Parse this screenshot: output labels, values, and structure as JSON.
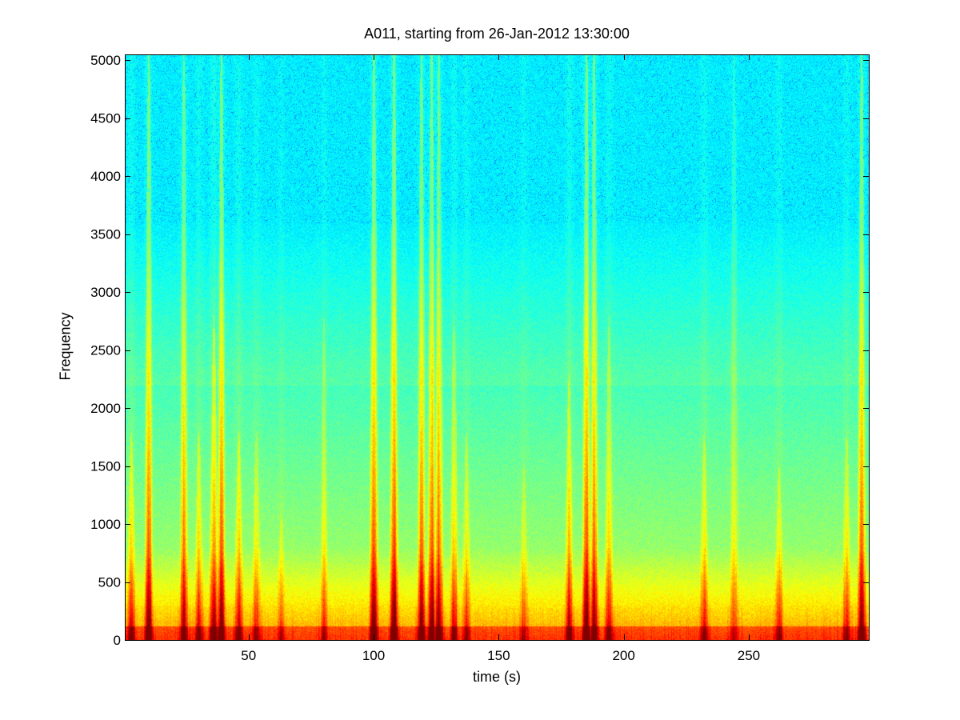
{
  "chart_data": {
    "type": "heatmap",
    "title": "A011, starting from 26-Jan-2012 13:30:00",
    "xlabel": "time (s)",
    "ylabel": "Frequency",
    "xlim": [
      0.5,
      298
    ],
    "ylim": [
      0,
      5050
    ],
    "x_ticks": [
      50,
      100,
      150,
      200,
      250
    ],
    "y_ticks": [
      0,
      500,
      1000,
      1500,
      2000,
      2500,
      3000,
      3500,
      4000,
      4500,
      5000
    ],
    "colormap": "jet",
    "grid": false,
    "energy_bursts": [
      {
        "t": 3,
        "strength": 0.7,
        "reach_hz": 1500
      },
      {
        "t": 10,
        "strength": 0.9,
        "reach_hz": 5000
      },
      {
        "t": 24,
        "strength": 0.8,
        "reach_hz": 5000
      },
      {
        "t": 30,
        "strength": 0.65,
        "reach_hz": 1500
      },
      {
        "t": 36,
        "strength": 0.95,
        "reach_hz": 2500
      },
      {
        "t": 39,
        "strength": 0.9,
        "reach_hz": 5000
      },
      {
        "t": 46,
        "strength": 0.75,
        "reach_hz": 1500
      },
      {
        "t": 53,
        "strength": 0.55,
        "reach_hz": 1500
      },
      {
        "t": 63,
        "strength": 0.4,
        "reach_hz": 800
      },
      {
        "t": 80,
        "strength": 0.45,
        "reach_hz": 2500
      },
      {
        "t": 100,
        "strength": 1.0,
        "reach_hz": 5000
      },
      {
        "t": 108,
        "strength": 1.0,
        "reach_hz": 5000
      },
      {
        "t": 119,
        "strength": 0.95,
        "reach_hz": 5000
      },
      {
        "t": 123,
        "strength": 1.0,
        "reach_hz": 5000
      },
      {
        "t": 126,
        "strength": 0.9,
        "reach_hz": 5000
      },
      {
        "t": 132,
        "strength": 0.7,
        "reach_hz": 2500
      },
      {
        "t": 137,
        "strength": 0.5,
        "reach_hz": 1500
      },
      {
        "t": 160,
        "strength": 0.45,
        "reach_hz": 1200
      },
      {
        "t": 178,
        "strength": 0.8,
        "reach_hz": 2000
      },
      {
        "t": 185,
        "strength": 1.0,
        "reach_hz": 5000
      },
      {
        "t": 188,
        "strength": 0.9,
        "reach_hz": 5000
      },
      {
        "t": 194,
        "strength": 0.6,
        "reach_hz": 2500
      },
      {
        "t": 232,
        "strength": 0.6,
        "reach_hz": 1500
      },
      {
        "t": 244,
        "strength": 0.4,
        "reach_hz": 5000
      },
      {
        "t": 262,
        "strength": 0.55,
        "reach_hz": 1200
      },
      {
        "t": 289,
        "strength": 0.6,
        "reach_hz": 1500
      },
      {
        "t": 295,
        "strength": 0.95,
        "reach_hz": 5000
      }
    ]
  }
}
